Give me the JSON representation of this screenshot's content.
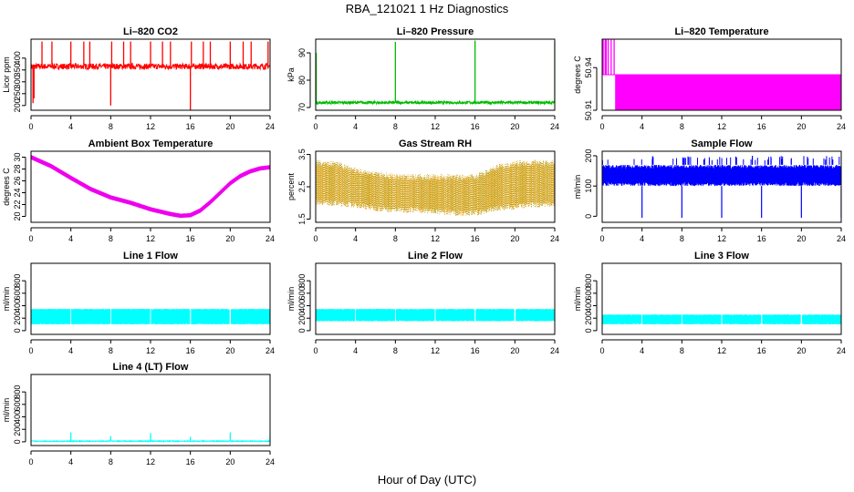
{
  "figure": {
    "title": "RBA_121021  1 Hz Diagnostics",
    "xlabel": "Hour of Day (UTC)"
  },
  "chart_data": [
    {
      "type": "line",
      "title": "Li–820 CO2",
      "ylabel": "Licor ppm",
      "color": "#ff0000",
      "xlim": [
        0,
        24
      ],
      "ylim": [
        180,
        480
      ],
      "xticks": [
        0,
        4,
        8,
        12,
        16,
        20,
        24
      ],
      "yticks": [
        200,
        250,
        300,
        350,
        400
      ],
      "baseline": 365,
      "noise": 12,
      "spikes": [
        [
          0.2,
          210
        ],
        [
          0.3,
          230
        ],
        [
          1.1,
          470
        ],
        [
          2.1,
          470
        ],
        [
          4.0,
          470
        ],
        [
          5.3,
          470
        ],
        [
          5.9,
          470
        ],
        [
          8.0,
          200
        ],
        [
          8.1,
          470
        ],
        [
          9.3,
          470
        ],
        [
          10.0,
          470
        ],
        [
          12.0,
          470
        ],
        [
          13.2,
          470
        ],
        [
          14.0,
          470
        ],
        [
          16.0,
          180
        ],
        [
          16.1,
          470
        ],
        [
          17.3,
          470
        ],
        [
          18.0,
          470
        ],
        [
          20.0,
          470
        ],
        [
          21.3,
          470
        ],
        [
          22.1,
          470
        ],
        [
          23.8,
          470
        ]
      ]
    },
    {
      "type": "line",
      "title": "Li–820 Pressure",
      "ylabel": "kPa",
      "color": "#00bb00",
      "xlim": [
        0,
        24
      ],
      "ylim": [
        69,
        95
      ],
      "xticks": [
        0,
        4,
        8,
        12,
        16,
        20,
        24
      ],
      "yticks": [
        70,
        80,
        90
      ],
      "baseline": 71.8,
      "noise": 0.5,
      "spikes": [
        [
          0.05,
          90
        ],
        [
          8.0,
          94
        ],
        [
          16.0,
          94.5
        ],
        [
          24.0,
          94
        ]
      ]
    },
    {
      "type": "line",
      "title": "Li–820 Temperature",
      "ylabel": "degrees C",
      "color": "#ff00ff",
      "xlim": [
        0,
        24
      ],
      "ylim": [
        50.91,
        50.96
      ],
      "xticks": [
        0,
        4,
        8,
        12,
        16,
        20,
        24
      ],
      "yticks": [
        50.91,
        50.94
      ],
      "ytick_labels": [
        "50.91",
        "50.94"
      ],
      "baseline": 50.935,
      "noise": 0,
      "spikes": [
        [
          0.1,
          50.96
        ],
        [
          0.3,
          50.96
        ],
        [
          0.4,
          50.96
        ],
        [
          0.6,
          50.96
        ],
        [
          0.9,
          50.96
        ],
        [
          1.2,
          50.96
        ]
      ]
    },
    {
      "type": "line",
      "title": "Ambient Box Temperature",
      "ylabel": "degrees C",
      "color": "#ee00ee",
      "xlim": [
        0,
        24
      ],
      "ylim": [
        19,
        31
      ],
      "xticks": [
        0,
        4,
        8,
        12,
        16,
        20,
        24
      ],
      "yticks": [
        20,
        22,
        24,
        26,
        28,
        30
      ],
      "x": [
        0,
        2,
        4,
        6,
        8,
        10,
        12,
        14,
        15,
        16,
        17,
        18,
        19,
        20,
        21,
        22,
        23,
        24
      ],
      "y": [
        30,
        28.5,
        26.5,
        24.6,
        23.2,
        22.3,
        21.2,
        20.4,
        20.1,
        20.2,
        21.0,
        22.4,
        24.0,
        25.6,
        26.8,
        27.6,
        28.1,
        28.3
      ],
      "noise": 0.35
    },
    {
      "type": "scatter",
      "title": "Gas Stream RH",
      "ylabel": "percent",
      "color": "#ff9900",
      "color2": "#999900",
      "xlim": [
        0,
        24
      ],
      "ylim": [
        1.4,
        3.6
      ],
      "xticks": [
        0,
        4,
        8,
        12,
        16,
        20,
        24
      ],
      "yticks": [
        1.5,
        2.5,
        3.5
      ],
      "x": [
        0,
        2,
        4,
        6,
        8,
        10,
        12,
        14,
        16,
        17,
        18,
        20,
        22,
        24
      ],
      "y_lo": [
        1.95,
        1.9,
        1.85,
        1.75,
        1.7,
        1.7,
        1.65,
        1.6,
        1.6,
        1.65,
        1.75,
        1.8,
        1.85,
        1.9
      ],
      "y_hi": [
        3.35,
        3.3,
        3.1,
        3.0,
        2.9,
        2.9,
        2.9,
        2.9,
        2.9,
        3.0,
        3.2,
        3.3,
        3.35,
        3.3
      ]
    },
    {
      "type": "line",
      "title": "Sample Flow",
      "ylabel": "ml/min",
      "color": "#0000ff",
      "xlim": [
        0,
        24
      ],
      "ylim": [
        -20,
        215
      ],
      "xticks": [
        0,
        4,
        8,
        12,
        16,
        20,
        24
      ],
      "yticks": [
        0,
        100,
        200
      ],
      "band": [
        100,
        170
      ],
      "peak": 200,
      "dips": [
        [
          4.0,
          -5
        ],
        [
          8.0,
          -5
        ],
        [
          12.0,
          -5
        ],
        [
          16.0,
          -5
        ],
        [
          20.0,
          -5
        ],
        [
          24.0,
          -5
        ]
      ]
    },
    {
      "type": "line",
      "title": "Line 1 Flow",
      "ylabel": "ml/min",
      "color": "#00ffff",
      "xlim": [
        0,
        24
      ],
      "ylim": [
        -60,
        1080
      ],
      "xticks": [
        0,
        4,
        8,
        12,
        16,
        20,
        24
      ],
      "yticks": [
        0,
        200,
        400,
        600,
        800
      ],
      "band": [
        100,
        350
      ],
      "gaps": [
        4.0,
        8.0,
        12.0,
        16.0,
        20.0
      ]
    },
    {
      "type": "line",
      "title": "Line 2 Flow",
      "ylabel": "ml/min",
      "color": "#00ffff",
      "xlim": [
        0,
        24
      ],
      "ylim": [
        -60,
        1080
      ],
      "xticks": [
        0,
        4,
        8,
        12,
        16,
        20,
        24
      ],
      "yticks": [
        0,
        200,
        400,
        600,
        800
      ],
      "band": [
        150,
        350
      ],
      "gaps": [
        4.0,
        8.0,
        12.0,
        16.0,
        20.0
      ]
    },
    {
      "type": "line",
      "title": "Line 3 Flow",
      "ylabel": "ml/min",
      "color": "#00ffff",
      "xlim": [
        0,
        24
      ],
      "ylim": [
        -60,
        1080
      ],
      "xticks": [
        0,
        4,
        8,
        12,
        16,
        20,
        24
      ],
      "yticks": [
        0,
        200,
        400,
        600,
        800
      ],
      "band": [
        100,
        260
      ],
      "gaps": [
        4.0,
        8.0,
        12.0,
        16.0,
        20.0
      ]
    },
    {
      "type": "line",
      "title": "Line 4 (LT) Flow",
      "ylabel": "ml/min",
      "color": "#00ffff",
      "xlim": [
        0,
        24
      ],
      "ylim": [
        -60,
        1080
      ],
      "xticks": [
        0,
        4,
        8,
        12,
        16,
        20,
        24
      ],
      "yticks": [
        0,
        200,
        400,
        600,
        800
      ],
      "baseline": 10,
      "noise": 6,
      "spikes": [
        [
          4.0,
          150
        ],
        [
          8.0,
          90
        ],
        [
          12.0,
          140
        ],
        [
          16.0,
          80
        ],
        [
          20.0,
          150
        ],
        [
          24.0,
          90
        ]
      ]
    }
  ]
}
